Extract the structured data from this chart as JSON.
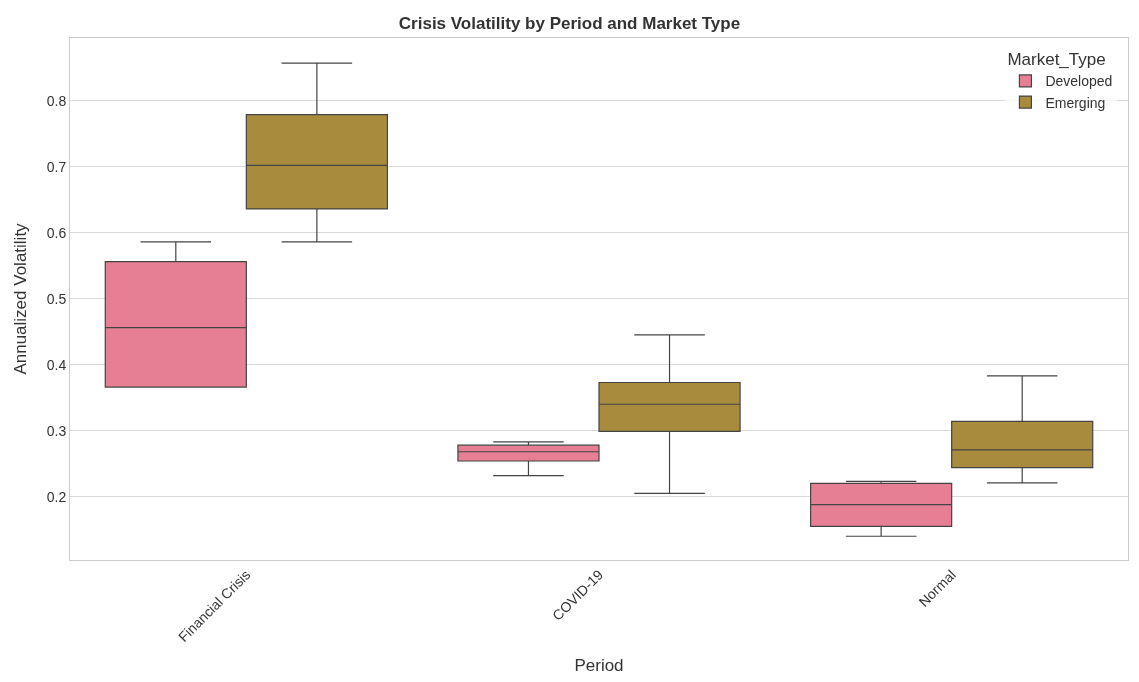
{
  "chart_data": {
    "type": "box",
    "title": "Crisis Volatility by Period and Market Type",
    "xlabel": "Period",
    "ylabel": "Annualized Volatility",
    "legend_title": "Market_Type",
    "categories": [
      "Financial Crisis",
      "COVID-19",
      "Normal"
    ],
    "series": [
      {
        "name": "Developed",
        "color": "#e67f93",
        "boxes": [
          {
            "low": 0.366,
            "q1": 0.366,
            "median": 0.456,
            "q3": 0.556,
            "high": 0.586
          },
          {
            "low": 0.232,
            "q1": 0.254,
            "median": 0.268,
            "q3": 0.278,
            "high": 0.283
          },
          {
            "low": 0.14,
            "q1": 0.155,
            "median": 0.188,
            "q3": 0.22,
            "high": 0.223
          }
        ]
      },
      {
        "name": "Emerging",
        "color": "#a88b3c",
        "boxes": [
          {
            "low": 0.586,
            "q1": 0.636,
            "median": 0.702,
            "q3": 0.779,
            "high": 0.857
          },
          {
            "low": 0.205,
            "q1": 0.299,
            "median": 0.34,
            "q3": 0.373,
            "high": 0.445
          },
          {
            "low": 0.221,
            "q1": 0.244,
            "median": 0.271,
            "q3": 0.314,
            "high": 0.383
          }
        ]
      }
    ],
    "ylim": [
      0.104,
      0.895
    ],
    "yticks": [
      0.2,
      0.3,
      0.4,
      0.5,
      0.6,
      0.7,
      0.8
    ],
    "grid": "y",
    "legend": "top right"
  }
}
